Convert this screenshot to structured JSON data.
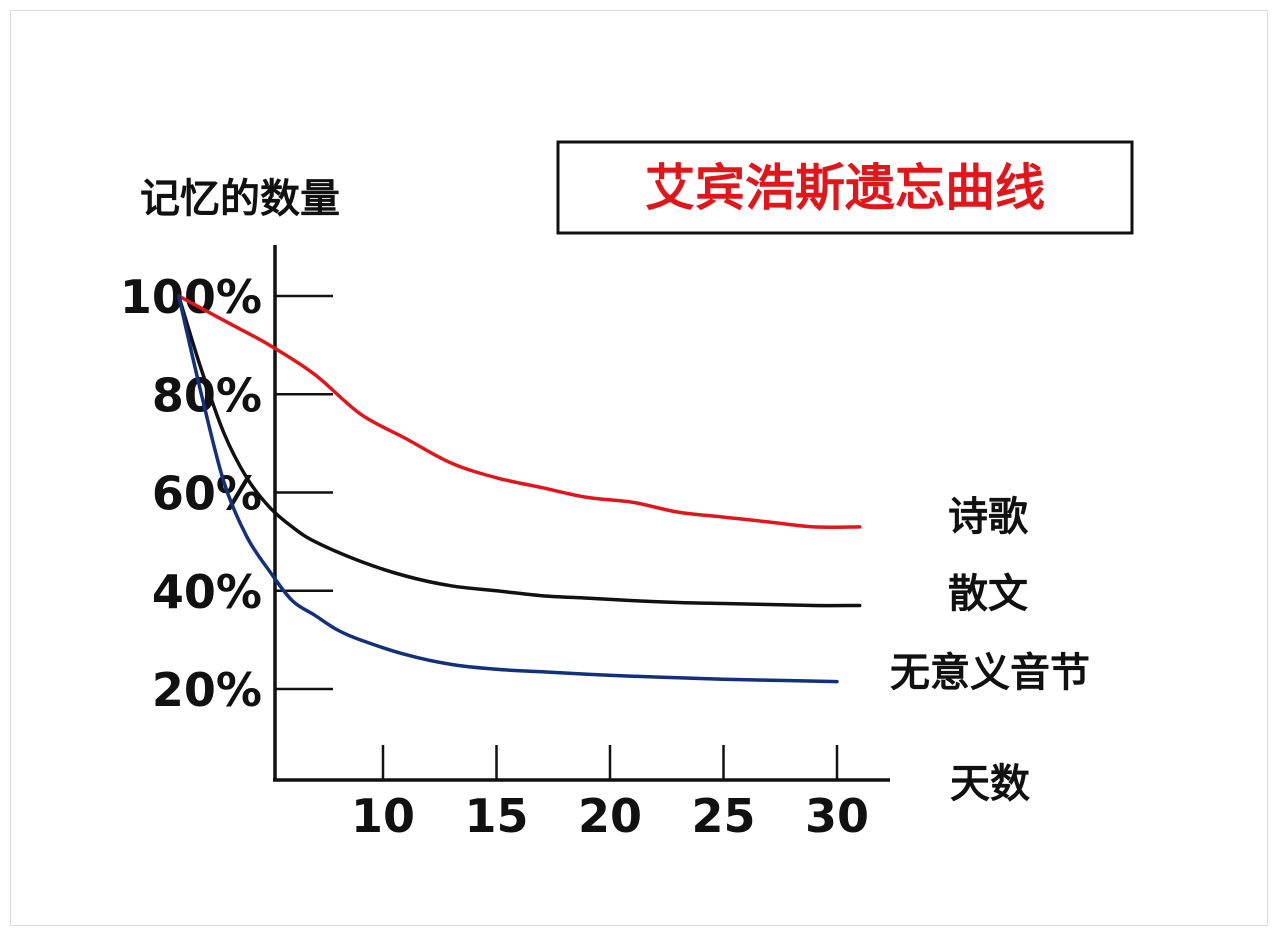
{
  "chart_data": {
    "type": "line",
    "title": "艾宾浩斯遗忘曲线",
    "ylabel": "记忆的数量",
    "xlabel": "天数",
    "xlim": [
      0,
      32
    ],
    "ylim": [
      0,
      100
    ],
    "x_ticks": [
      10,
      15,
      20,
      25,
      30
    ],
    "x_tick_labels": [
      "10",
      "15",
      "20",
      "25",
      "30"
    ],
    "y_ticks": [
      20,
      40,
      60,
      80,
      100
    ],
    "y_tick_labels": [
      "20%",
      "40%",
      "60%",
      "80%",
      "100%"
    ],
    "grid": false,
    "legend": "labels at right end of each line",
    "series": [
      {
        "name": "诗歌",
        "color": "#e0161b",
        "x": [
          1,
          3,
          5,
          7,
          9,
          11,
          13,
          15,
          17,
          19,
          21,
          23,
          25,
          27,
          29,
          31
        ],
        "values": [
          100,
          95,
          90,
          84,
          76,
          71,
          66,
          63,
          61,
          59,
          58,
          56,
          55,
          54,
          53,
          53
        ]
      },
      {
        "name": "散文",
        "color": "#111111",
        "x": [
          1,
          2,
          3,
          4,
          5,
          6,
          7,
          9,
          11,
          13,
          15,
          17,
          19,
          21,
          23,
          25,
          27,
          29,
          31
        ],
        "values": [
          100,
          85,
          72,
          63,
          57,
          53,
          50,
          46,
          43,
          41,
          40,
          39,
          38.5,
          38,
          37.6,
          37.4,
          37.2,
          37,
          37
        ]
      },
      {
        "name": "无意义音节",
        "color": "#13307a",
        "x": [
          1,
          2,
          3,
          4,
          5,
          6,
          7,
          8,
          9,
          11,
          13,
          15,
          17,
          19,
          21,
          23,
          25,
          27,
          29,
          30
        ],
        "values": [
          100,
          80,
          62,
          51,
          44,
          38,
          35,
          32,
          30,
          27,
          25,
          24,
          23.5,
          23,
          22.6,
          22.3,
          22,
          21.8,
          21.6,
          21.5
        ]
      }
    ]
  }
}
